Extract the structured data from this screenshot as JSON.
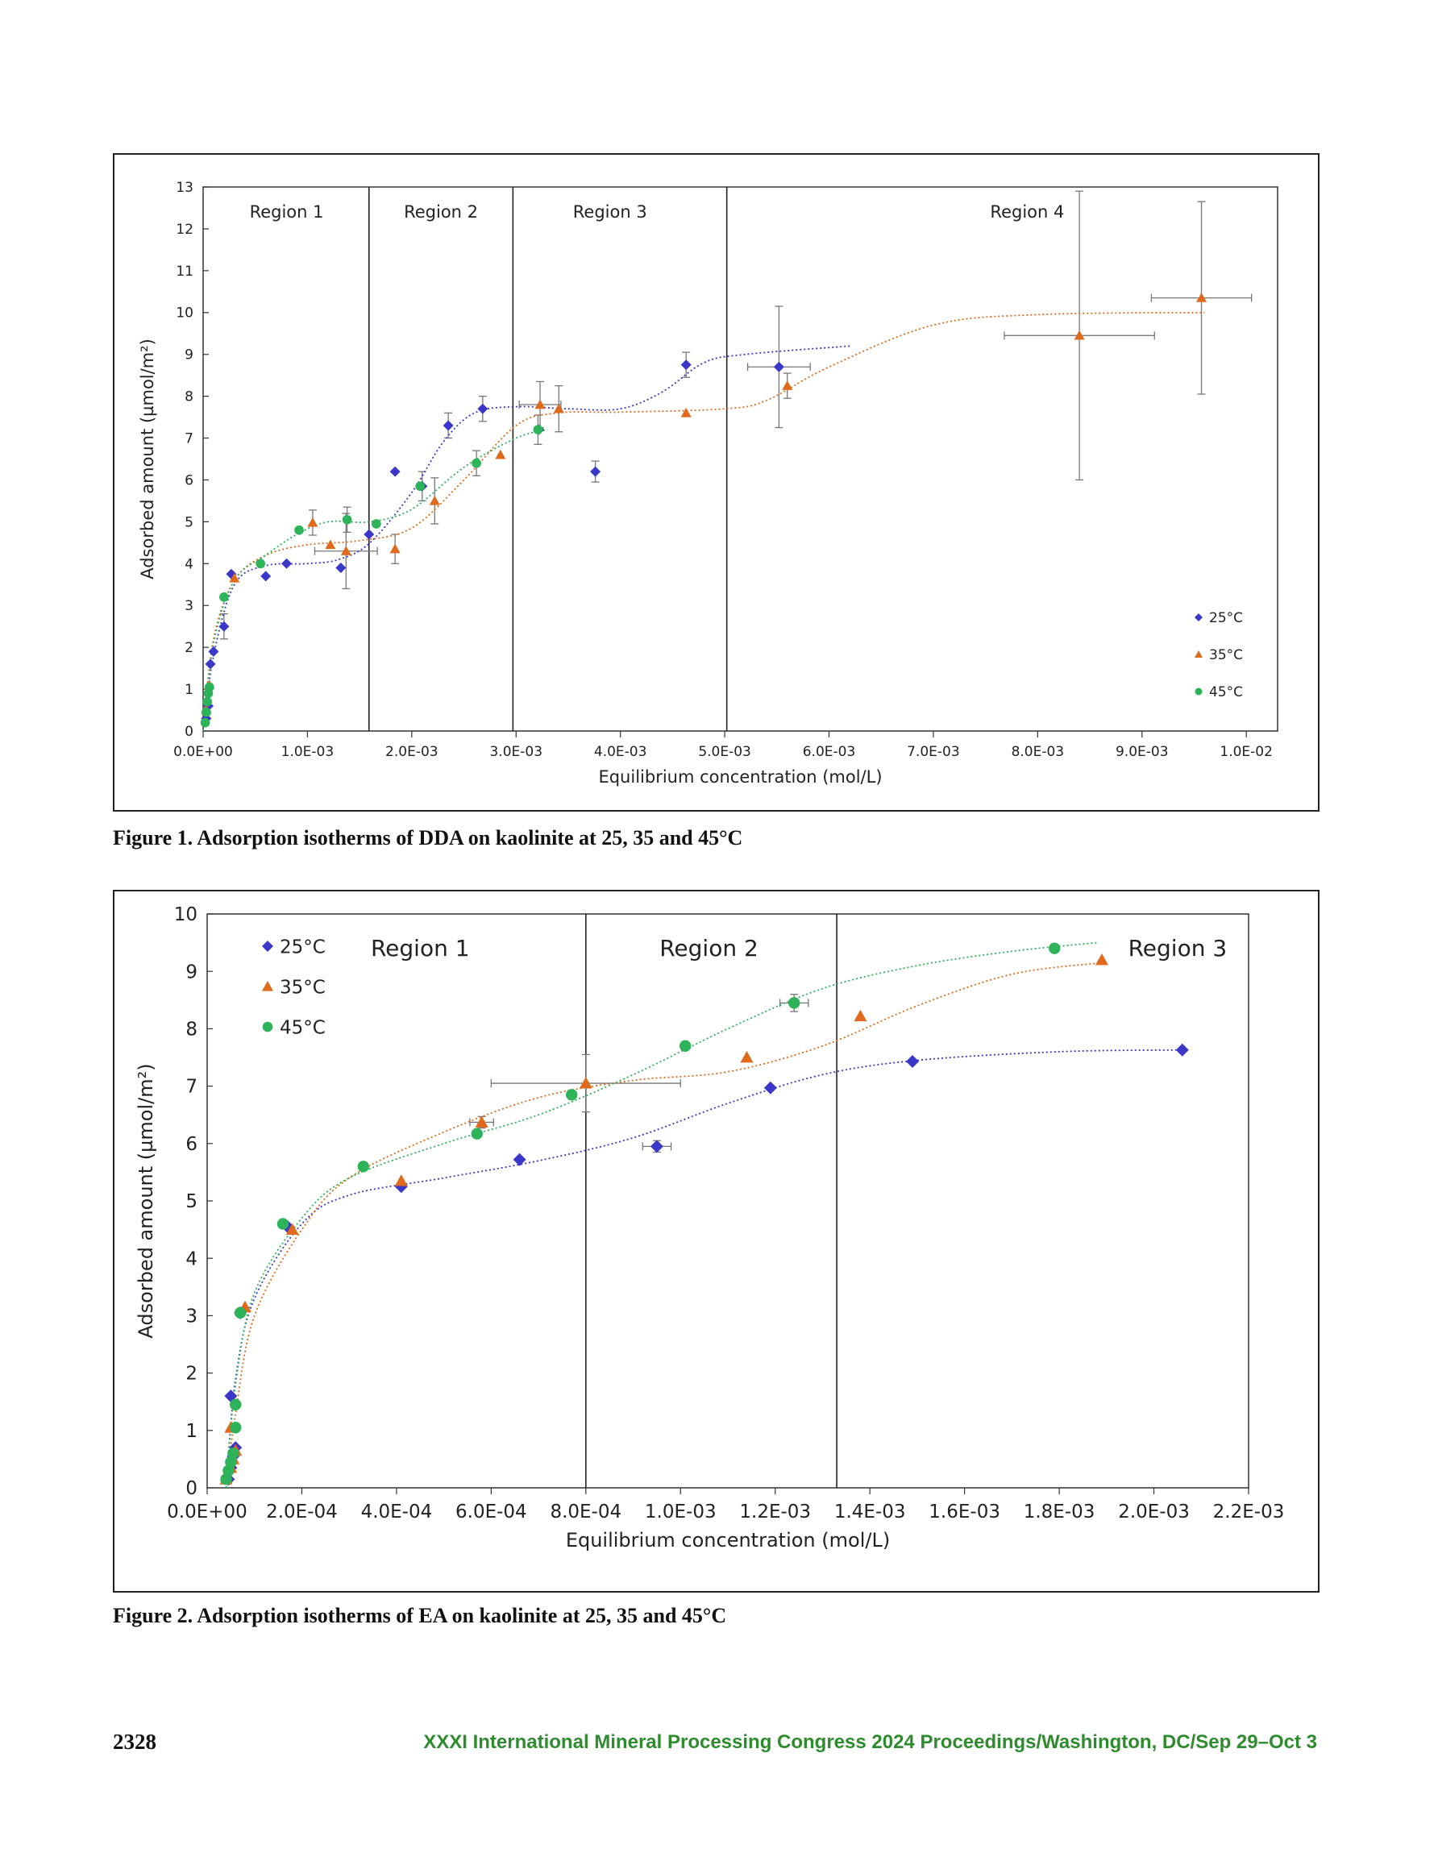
{
  "page": {
    "number": "2328",
    "footer": "XXXI International Mineral Processing Congress 2024 Proceedings/Washington, DC/Sep 29–Oct 3",
    "footer_color": "#2e8b2e"
  },
  "figures": [
    {
      "caption": "Figure 1. Adsorption isotherms of DDA on kaolinite at 25, 35 and 45°C"
    },
    {
      "caption": "Figure 2. Adsorption isotherms of EA on kaolinite at 25, 35 and 45°C"
    }
  ],
  "chart_data": [
    {
      "type": "scatter",
      "xlabel": "Equilibrium concentration (mol/L)",
      "ylabel": "Adsorbed amount (µmol/m²)",
      "xlim": [
        0,
        0.0103
      ],
      "ylim": [
        0,
        13
      ],
      "x_ticks": [
        "0.0E+00",
        "1.0E-03",
        "2.0E-03",
        "3.0E-03",
        "4.0E-03",
        "5.0E-03",
        "6.0E-03",
        "7.0E-03",
        "8.0E-03",
        "9.0E-03",
        "1.0E-02"
      ],
      "x_tick_values": [
        0,
        0.001,
        0.002,
        0.003,
        0.004,
        0.005,
        0.006,
        0.007,
        0.008,
        0.009,
        0.01
      ],
      "y_ticks": [
        "0",
        "1",
        "2",
        "3",
        "4",
        "5",
        "6",
        "7",
        "8",
        "9",
        "10",
        "11",
        "12",
        "13"
      ],
      "legend_position": "bottom-right",
      "region_boundaries": [
        0.00159,
        0.00297,
        0.00502
      ],
      "regions": [
        {
          "label": "Region 1",
          "x": 0.0008
        },
        {
          "label": "Region 2",
          "x": 0.00228
        },
        {
          "label": "Region 3",
          "x": 0.0039
        },
        {
          "label": "Region 4",
          "x": 0.0079
        }
      ],
      "series": [
        {
          "name": "25°C",
          "marker": "diamond",
          "color": "#3b38c9",
          "points": [
            [
              3e-05,
              0.3
            ],
            [
              5e-05,
              0.6
            ],
            [
              7e-05,
              1.6
            ],
            [
              0.0001,
              1.9
            ],
            [
              0.0002,
              2.5
            ],
            [
              0.00027,
              3.75
            ],
            [
              0.0006,
              3.7
            ],
            [
              0.0008,
              4.0
            ],
            [
              0.00132,
              3.9
            ],
            [
              0.00159,
              4.7
            ],
            [
              0.00184,
              6.2
            ],
            [
              0.0021,
              5.85
            ],
            [
              0.00235,
              7.3
            ],
            [
              0.00268,
              7.7
            ],
            [
              0.00322,
              7.2
            ],
            [
              0.00376,
              6.2
            ],
            [
              0.00463,
              8.75
            ],
            [
              0.00552,
              8.7
            ]
          ],
          "curve": [
            [
              0,
              0
            ],
            [
              0.0001,
              1.8
            ],
            [
              0.0003,
              3.5
            ],
            [
              0.0006,
              3.95
            ],
            [
              0.001,
              4.0
            ],
            [
              0.0013,
              4.1
            ],
            [
              0.0016,
              4.5
            ],
            [
              0.002,
              5.7
            ],
            [
              0.0023,
              6.9
            ],
            [
              0.0026,
              7.6
            ],
            [
              0.003,
              7.75
            ],
            [
              0.0035,
              7.7
            ],
            [
              0.004,
              7.7
            ],
            [
              0.0044,
              8.1
            ],
            [
              0.0048,
              8.8
            ],
            [
              0.0052,
              9.0
            ],
            [
              0.0062,
              9.2
            ]
          ]
        },
        {
          "name": "35°C",
          "marker": "triangle",
          "color": "#e06a1b",
          "points": [
            [
              3e-05,
              0.5
            ],
            [
              6e-05,
              1.1
            ],
            [
              0.0003,
              3.65
            ],
            [
              0.00105,
              4.98
            ],
            [
              0.00122,
              4.45
            ],
            [
              0.00137,
              4.3
            ],
            [
              0.00184,
              4.35
            ],
            [
              0.00222,
              5.5
            ],
            [
              0.00285,
              6.6
            ],
            [
              0.00323,
              7.8
            ],
            [
              0.00341,
              7.7
            ],
            [
              0.00463,
              7.6
            ],
            [
              0.0056,
              8.25
            ],
            [
              0.0084,
              9.45
            ],
            [
              0.00957,
              10.35
            ]
          ],
          "curve": [
            [
              0,
              0
            ],
            [
              0.0001,
              2.2
            ],
            [
              0.0003,
              3.6
            ],
            [
              0.0006,
              4.2
            ],
            [
              0.001,
              4.45
            ],
            [
              0.0015,
              4.55
            ],
            [
              0.002,
              4.85
            ],
            [
              0.0025,
              6.0
            ],
            [
              0.003,
              7.3
            ],
            [
              0.0034,
              7.6
            ],
            [
              0.004,
              7.62
            ],
            [
              0.005,
              7.7
            ],
            [
              0.0054,
              7.9
            ],
            [
              0.006,
              8.7
            ],
            [
              0.007,
              9.7
            ],
            [
              0.008,
              9.95
            ],
            [
              0.0096,
              10.0
            ]
          ]
        },
        {
          "name": "45°C",
          "marker": "circle",
          "color": "#2fb35a",
          "points": [
            [
              2e-05,
              0.2
            ],
            [
              3e-05,
              0.45
            ],
            [
              4e-05,
              0.7
            ],
            [
              5e-05,
              0.9
            ],
            [
              6e-05,
              1.05
            ],
            [
              0.0002,
              3.2
            ],
            [
              0.00055,
              4.0
            ],
            [
              0.00092,
              4.8
            ],
            [
              0.00138,
              5.05
            ],
            [
              0.00166,
              4.95
            ],
            [
              0.00208,
              5.85
            ],
            [
              0.00262,
              6.4
            ],
            [
              0.00321,
              7.2
            ]
          ],
          "curve": [
            [
              0,
              0
            ],
            [
              0.0001,
              2.1
            ],
            [
              0.0003,
              3.6
            ],
            [
              0.0006,
              4.2
            ],
            [
              0.0009,
              4.7
            ],
            [
              0.0012,
              5.0
            ],
            [
              0.0016,
              5.0
            ],
            [
              0.002,
              5.3
            ],
            [
              0.0025,
              6.3
            ],
            [
              0.003,
              7.0
            ],
            [
              0.0033,
              7.2
            ]
          ]
        }
      ],
      "error_bars": [
        {
          "x": 0.0002,
          "y": 2.5,
          "dy": 0.3
        },
        {
          "x": 0.00105,
          "y": 4.98,
          "dy": 0.3
        },
        {
          "x": 0.00138,
          "y": 5.05,
          "dy": 0.3
        },
        {
          "x": 0.00137,
          "y": 4.3,
          "dy": 0.9,
          "dx": 0.0003
        },
        {
          "x": 0.00184,
          "y": 4.35,
          "dy": 0.35
        },
        {
          "x": 0.0021,
          "y": 5.85,
          "dy": 0.35
        },
        {
          "x": 0.00222,
          "y": 5.5,
          "dy": 0.55
        },
        {
          "x": 0.00235,
          "y": 7.3,
          "dy": 0.3
        },
        {
          "x": 0.00262,
          "y": 6.4,
          "dy": 0.3
        },
        {
          "x": 0.00268,
          "y": 7.7,
          "dy": 0.3
        },
        {
          "x": 0.00323,
          "y": 7.8,
          "dy": 0.55,
          "dx": 0.0002
        },
        {
          "x": 0.00341,
          "y": 7.7,
          "dy": 0.55
        },
        {
          "x": 0.00321,
          "y": 7.2,
          "dy": 0.35
        },
        {
          "x": 0.00376,
          "y": 6.2,
          "dy": 0.25
        },
        {
          "x": 0.00463,
          "y": 8.75,
          "dy": 0.3
        },
        {
          "x": 0.00552,
          "y": 8.7,
          "dy": 1.45,
          "dx": 0.0003
        },
        {
          "x": 0.0056,
          "y": 8.25,
          "dy": 0.3
        },
        {
          "x": 0.0084,
          "y": 9.45,
          "dy": 3.45,
          "dx": 0.00072
        },
        {
          "x": 0.00957,
          "y": 10.35,
          "dy": 2.3,
          "dx": 0.00048
        }
      ]
    },
    {
      "type": "scatter",
      "xlabel": "Equilibrium concentration (mol/L)",
      "ylabel": "Adsorbed amount (µmol/m²)",
      "xlim": [
        0,
        0.0022
      ],
      "ylim": [
        0,
        10
      ],
      "x_ticks": [
        "0.0E+00",
        "2.0E-04",
        "4.0E-04",
        "6.0E-04",
        "8.0E-04",
        "1.0E-03",
        "1.2E-03",
        "1.4E-03",
        "1.6E-03",
        "1.8E-03",
        "2.0E-03",
        "2.2E-03"
      ],
      "x_tick_values": [
        0,
        0.0002,
        0.0004,
        0.0006,
        0.0008,
        0.001,
        0.0012,
        0.0014,
        0.0016,
        0.0018,
        0.002,
        0.0022
      ],
      "y_ticks": [
        "0",
        "1",
        "2",
        "3",
        "4",
        "5",
        "6",
        "7",
        "8",
        "9",
        "10"
      ],
      "legend_position": "top-left",
      "region_boundaries": [
        0.0008,
        0.00133
      ],
      "regions": [
        {
          "label": "Region 1",
          "x": 0.00045
        },
        {
          "label": "Region 2",
          "x": 0.00106
        },
        {
          "label": "Region 3",
          "x": 0.00205
        }
      ],
      "series": [
        {
          "name": "25°C",
          "marker": "diamond",
          "color": "#3b38c9",
          "points": [
            [
              4.5e-05,
              0.15
            ],
            [
              5e-05,
              0.35
            ],
            [
              5.5e-05,
              0.55
            ],
            [
              6e-05,
              0.7
            ],
            [
              5e-05,
              1.6
            ],
            [
              7e-05,
              3.05
            ],
            [
              0.00017,
              4.55
            ],
            [
              0.00041,
              5.25
            ],
            [
              0.00066,
              5.72
            ],
            [
              0.00095,
              5.95
            ],
            [
              0.00119,
              6.97
            ],
            [
              0.00149,
              7.43
            ],
            [
              0.00206,
              7.63
            ]
          ],
          "curve": [
            [
              4e-05,
              0
            ],
            [
              6e-05,
              1.9
            ],
            [
              0.0001,
              3.3
            ],
            [
              0.0002,
              4.6
            ],
            [
              0.0003,
              5.1
            ],
            [
              0.0005,
              5.4
            ],
            [
              0.0007,
              5.7
            ],
            [
              0.0009,
              6.1
            ],
            [
              0.0011,
              6.7
            ],
            [
              0.0013,
              7.2
            ],
            [
              0.0015,
              7.45
            ],
            [
              0.0018,
              7.6
            ],
            [
              0.00205,
              7.63
            ]
          ]
        },
        {
          "name": "35°C",
          "marker": "triangle",
          "color": "#e06a1b",
          "points": [
            [
              4e-05,
              0.15
            ],
            [
              5e-05,
              0.35
            ],
            [
              5.5e-05,
              0.5
            ],
            [
              6e-05,
              0.65
            ],
            [
              5e-05,
              1.05
            ],
            [
              8e-05,
              3.15
            ],
            [
              0.00018,
              4.5
            ],
            [
              0.00041,
              5.35
            ],
            [
              0.00058,
              6.37
            ],
            [
              0.0008,
              7.05
            ],
            [
              0.00114,
              7.5
            ],
            [
              0.00138,
              8.22
            ],
            [
              0.00189,
              9.2
            ]
          ],
          "curve": [
            [
              4e-05,
              0
            ],
            [
              6e-05,
              1.3
            ],
            [
              0.0001,
              3.0
            ],
            [
              0.0002,
              4.5
            ],
            [
              0.0003,
              5.4
            ],
            [
              0.0005,
              6.2
            ],
            [
              0.0007,
              6.8
            ],
            [
              0.0009,
              7.1
            ],
            [
              0.0011,
              7.25
            ],
            [
              0.0013,
              7.7
            ],
            [
              0.0015,
              8.4
            ],
            [
              0.0017,
              8.95
            ],
            [
              0.00189,
              9.15
            ]
          ]
        },
        {
          "name": "45°C",
          "marker": "circle",
          "color": "#2fb35a",
          "points": [
            [
              4e-05,
              0.15
            ],
            [
              4.5e-05,
              0.3
            ],
            [
              5e-05,
              0.45
            ],
            [
              5.5e-05,
              0.6
            ],
            [
              6e-05,
              1.05
            ],
            [
              6e-05,
              1.45
            ],
            [
              7e-05,
              3.05
            ],
            [
              0.00016,
              4.6
            ],
            [
              0.00033,
              5.6
            ],
            [
              0.00057,
              6.17
            ],
            [
              0.00077,
              6.85
            ],
            [
              0.00101,
              7.7
            ],
            [
              0.00124,
              8.45
            ],
            [
              0.00179,
              9.4
            ]
          ],
          "curve": [
            [
              4e-05,
              0
            ],
            [
              6e-05,
              1.8
            ],
            [
              0.0001,
              3.4
            ],
            [
              0.0002,
              4.7
            ],
            [
              0.0003,
              5.4
            ],
            [
              0.0005,
              6.0
            ],
            [
              0.0007,
              6.5
            ],
            [
              0.0009,
              7.2
            ],
            [
              0.0011,
              8.0
            ],
            [
              0.0013,
              8.7
            ],
            [
              0.0015,
              9.1
            ],
            [
              0.0017,
              9.35
            ],
            [
              0.00188,
              9.5
            ]
          ]
        }
      ],
      "error_bars": [
        {
          "x": 0.0008,
          "y": 7.05,
          "dy": 0.5,
          "dx": 0.0002
        },
        {
          "x": 0.00058,
          "y": 6.37,
          "dy": 0.1,
          "dx": 2.5e-05
        },
        {
          "x": 0.00095,
          "y": 5.95,
          "dy": 0.1,
          "dx": 3e-05
        },
        {
          "x": 0.00124,
          "y": 8.45,
          "dy": 0.15,
          "dx": 3e-05
        }
      ]
    }
  ]
}
